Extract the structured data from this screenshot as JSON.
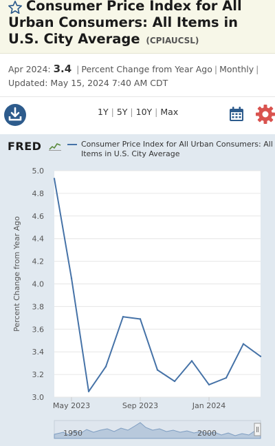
{
  "header": {
    "title": "Consumer Price Index for All Urban Consumers: All Items in U.S. City Average",
    "series_id": "(CPIAUCSL)"
  },
  "meta": {
    "period": "Apr 2024:",
    "value": "3.4",
    "units": "Percent Change from Year Ago",
    "frequency": "Monthly",
    "updated_label": "Updated:",
    "updated_value": "May 15, 2024 7:40 AM CDT",
    "separator": "|"
  },
  "toolbar": {
    "ranges": [
      "1Y",
      "5Y",
      "10Y",
      "Max"
    ],
    "separator": "|"
  },
  "logo": {
    "text": "FRED"
  },
  "colors": {
    "series": "#4572a7",
    "panel": "#e1e9f0",
    "accent_red": "#d9534f",
    "download_blue": "#2d5b8c"
  },
  "icons": {
    "title_star": "star-outline-icon",
    "download": "download-icon",
    "calendar": "calendar-icon",
    "settings": "gear-icon"
  },
  "chart_data": {
    "type": "line",
    "ylabel": "Percent Change from Year Ago",
    "xlabel": "",
    "ylim": [
      3.0,
      5.0
    ],
    "y_ticks": [
      3.0,
      3.2,
      3.4,
      3.6,
      3.8,
      4.0,
      4.2,
      4.4,
      4.6,
      4.8,
      5.0
    ],
    "x_ticks": [
      "May 2023",
      "Sep 2023",
      "Jan 2024"
    ],
    "grid": true,
    "legend_position": "top",
    "series": [
      {
        "name": "Consumer Price Index for All Urban Consumers: All Items in U.S. City Average",
        "x": [
          "2023-04",
          "2023-05",
          "2023-06",
          "2023-07",
          "2023-08",
          "2023-09",
          "2023-10",
          "2023-11",
          "2023-12",
          "2024-01",
          "2024-02",
          "2024-03",
          "2024-04"
        ],
        "values": [
          4.93,
          4.05,
          3.05,
          3.27,
          3.71,
          3.69,
          3.24,
          3.14,
          3.32,
          3.11,
          3.17,
          3.47,
          3.36
        ]
      }
    ],
    "navigator_labels": [
      "1950",
      "2000"
    ]
  }
}
